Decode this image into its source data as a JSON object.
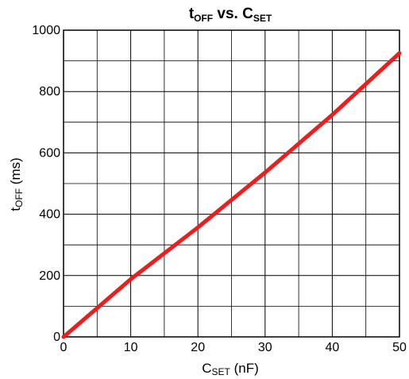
{
  "chart_data": {
    "type": "line",
    "title": {
      "main": "t",
      "main_sub": "OFF",
      "mid": " vs. C",
      "end_sub": "SET"
    },
    "xlabel": {
      "main": "C",
      "sub": "SET",
      "rest": " (nF)"
    },
    "ylabel": {
      "main": "t",
      "sub": "OFF",
      "rest": " (ms)"
    },
    "xlim": [
      0,
      50
    ],
    "ylim": [
      0,
      1000
    ],
    "xticks": [
      "0",
      "10",
      "20",
      "30",
      "40",
      "50"
    ],
    "yticks": [
      "0",
      "200",
      "400",
      "600",
      "800",
      "1000"
    ],
    "grid": true,
    "series": [
      {
        "color": "#ee1c1c",
        "x": [
          0,
          10,
          20,
          30,
          40,
          50
        ],
        "y": [
          0,
          188,
          357,
          536,
          724,
          925
        ]
      }
    ]
  }
}
